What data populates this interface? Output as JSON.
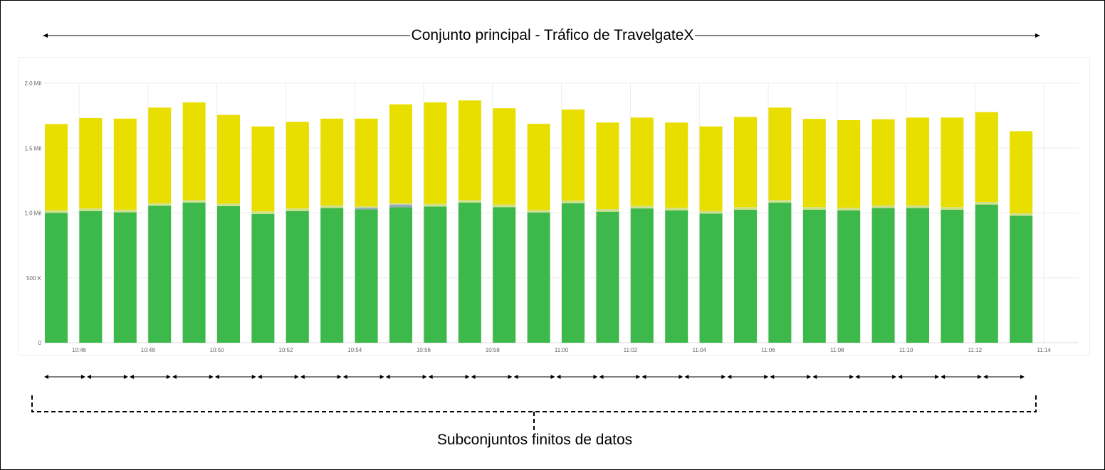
{
  "diagram": {
    "title": "Conjunto  principal - Tráfico de TravelgateX",
    "footer_label": "Subconjuntos finitos de datos"
  },
  "colors": {
    "green": "#3db84a",
    "yellow": "#e8de00",
    "light_green": "#cfe08a",
    "grey": "#b7bcc4",
    "blue_grey": "#9aa6c2",
    "grid": "#ececec",
    "axis_text": "#666666"
  },
  "chart_data": {
    "type": "bar",
    "stacked": true,
    "x_tick_labels": [
      "10:46",
      "10:48",
      "10:50",
      "10:52",
      "10:54",
      "10:56",
      "10:58",
      "11:00",
      "11:02",
      "11:04",
      "11:06",
      "11:08",
      "11:10",
      "11:12",
      "11:14"
    ],
    "y_ticks": [
      {
        "value": 0,
        "label": "0"
      },
      {
        "value": 500000,
        "label": "500 K"
      },
      {
        "value": 1000000,
        "label": "1.0 Mil"
      },
      {
        "value": 1500000,
        "label": "1.5 Mil"
      },
      {
        "value": 2000000,
        "label": "2.0 Mil"
      }
    ],
    "ylim": [
      0,
      2000000
    ],
    "grid": true,
    "series_colors": [
      "#3db84a",
      "#cfe08a",
      "#9aa6c2",
      "#e8de00"
    ],
    "bars": [
      {
        "green": 1000000,
        "light": 20000,
        "blue": 0,
        "total": 1685000
      },
      {
        "green": 1015000,
        "light": 20000,
        "blue": 0,
        "total": 1732000
      },
      {
        "green": 1005000,
        "light": 20000,
        "blue": 0,
        "total": 1727000
      },
      {
        "green": 1055000,
        "light": 20000,
        "blue": 0,
        "total": 1812000
      },
      {
        "green": 1080000,
        "light": 20000,
        "blue": 0,
        "total": 1852000
      },
      {
        "green": 1052000,
        "light": 20000,
        "blue": 0,
        "total": 1755000
      },
      {
        "green": 992000,
        "light": 20000,
        "blue": 0,
        "total": 1667000
      },
      {
        "green": 1015000,
        "light": 20000,
        "blue": 0,
        "total": 1702000
      },
      {
        "green": 1038000,
        "light": 20000,
        "blue": 0,
        "total": 1727000
      },
      {
        "green": 1028000,
        "light": 10000,
        "blue": 12000,
        "total": 1727000
      },
      {
        "green": 1045000,
        "light": 10000,
        "blue": 20000,
        "total": 1837000
      },
      {
        "green": 1050000,
        "light": 20000,
        "blue": 0,
        "total": 1852000
      },
      {
        "green": 1080000,
        "light": 20000,
        "blue": 0,
        "total": 1867000
      },
      {
        "green": 1045000,
        "light": 20000,
        "blue": 0,
        "total": 1807000
      },
      {
        "green": 1003000,
        "light": 20000,
        "blue": 0,
        "total": 1687000
      },
      {
        "green": 1075000,
        "light": 20000,
        "blue": 0,
        "total": 1797000
      },
      {
        "green": 1010000,
        "light": 20000,
        "blue": 0,
        "total": 1697000
      },
      {
        "green": 1035000,
        "light": 20000,
        "blue": 0,
        "total": 1735000
      },
      {
        "green": 1020000,
        "light": 20000,
        "blue": 0,
        "total": 1697000
      },
      {
        "green": 995000,
        "light": 20000,
        "blue": 0,
        "total": 1667000
      },
      {
        "green": 1025000,
        "light": 20000,
        "blue": 0,
        "total": 1740000
      },
      {
        "green": 1080000,
        "light": 20000,
        "blue": 0,
        "total": 1812000
      },
      {
        "green": 1025000,
        "light": 20000,
        "blue": 0,
        "total": 1725000
      },
      {
        "green": 1020000,
        "light": 20000,
        "blue": 0,
        "total": 1715000
      },
      {
        "green": 1038000,
        "light": 20000,
        "blue": 0,
        "total": 1722000
      },
      {
        "green": 1038000,
        "light": 20000,
        "blue": 0,
        "total": 1735000
      },
      {
        "green": 1025000,
        "light": 20000,
        "blue": 0,
        "total": 1735000
      },
      {
        "green": 1065000,
        "light": 20000,
        "blue": 0,
        "total": 1777000
      },
      {
        "green": 978000,
        "light": 20000,
        "blue": 0,
        "total": 1630000
      }
    ]
  },
  "subsets": {
    "count": 23
  }
}
